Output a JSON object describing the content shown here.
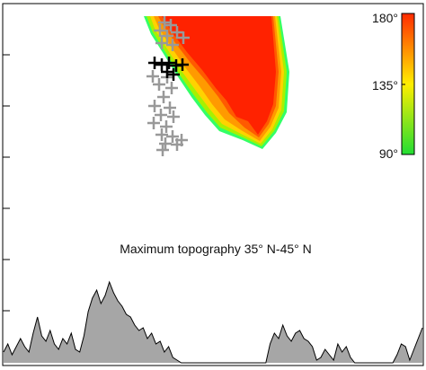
{
  "chart_data": [
    {
      "type": "heatmap",
      "title": "",
      "colorbar": {
        "min": 90,
        "max": 180,
        "ticks": [
          "90°",
          "135°",
          "180°"
        ],
        "colors": [
          "#22dd33",
          "#ffee00",
          "#ff2b00"
        ]
      },
      "field_colors": [
        "#ff2200",
        "#ff5a00",
        "#ff9a00",
        "#ffd200",
        "#a8f000",
        "#33ff66"
      ],
      "marker_sets": [
        {
          "name": "",
          "color": "#999999",
          "marker": "plus"
        },
        {
          "name": "",
          "color": "#000000",
          "marker": "plus"
        }
      ]
    },
    {
      "type": "area",
      "annotation": "Maximum topography 35° N-45° N",
      "x": [
        0,
        1,
        2,
        3,
        4,
        5,
        6,
        7,
        8,
        9,
        10,
        11,
        12,
        13,
        14,
        15,
        16,
        17,
        18,
        19,
        20,
        21,
        22,
        23,
        24,
        25,
        26,
        27,
        28,
        29,
        30,
        31,
        32,
        33,
        34,
        35,
        36,
        37,
        38,
        39,
        40,
        41,
        42,
        43,
        44,
        45,
        46,
        47,
        48,
        49,
        50,
        51,
        52,
        53,
        54,
        55,
        56,
        57,
        58,
        59,
        60,
        61,
        62,
        63,
        64,
        65,
        66,
        67,
        68,
        69,
        70,
        71,
        72,
        73,
        74,
        75,
        76,
        77,
        78,
        79,
        80,
        81,
        82,
        83,
        84,
        85,
        86,
        87,
        88,
        89,
        90,
        91,
        92,
        93,
        94,
        95,
        96,
        97,
        98,
        99
      ],
      "values": [
        0.2,
        0.35,
        0.15,
        0.3,
        0.45,
        0.3,
        0.2,
        0.55,
        0.85,
        0.5,
        0.4,
        0.6,
        0.35,
        0.25,
        0.45,
        0.35,
        0.55,
        0.25,
        0.2,
        0.5,
        0.95,
        1.2,
        1.35,
        1.1,
        1.25,
        1.5,
        1.3,
        1.15,
        1.05,
        0.9,
        0.85,
        0.7,
        0.6,
        0.65,
        0.45,
        0.55,
        0.35,
        0.4,
        0.2,
        0.3,
        0.1,
        0.05,
        0,
        0,
        0,
        0,
        0,
        0,
        0,
        0,
        0,
        0,
        0,
        0,
        0,
        0,
        0,
        0,
        0,
        0,
        0,
        0,
        0,
        0.35,
        0.55,
        0.45,
        0.7,
        0.5,
        0.4,
        0.55,
        0.6,
        0.45,
        0.4,
        0.3,
        0.05,
        0.1,
        0.25,
        0.15,
        0.05,
        0.35,
        0.2,
        0.3,
        0.1,
        0,
        0,
        0,
        0,
        0,
        0,
        0,
        0,
        0,
        0,
        0.15,
        0.35,
        0.3,
        0.05,
        0.25,
        0.45,
        0.65
      ],
      "fill_color": "#a6a6a6",
      "line_color": "#000000"
    }
  ]
}
